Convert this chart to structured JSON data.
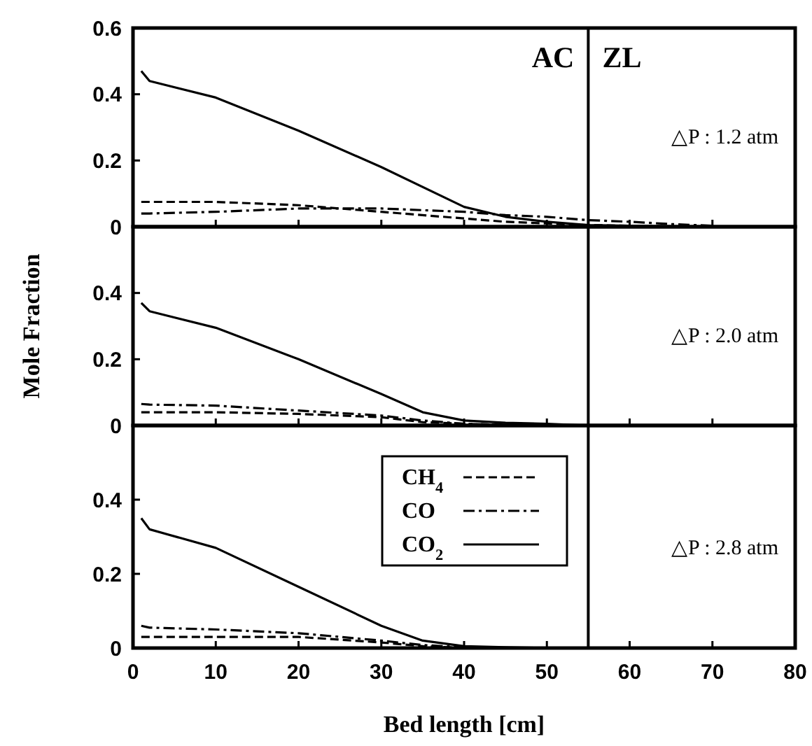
{
  "chart_data": [
    {
      "type": "line",
      "xlim": [
        0,
        80
      ],
      "ylim": [
        0,
        0.6
      ],
      "yticks": [
        0,
        0.2,
        0.4,
        0.6
      ],
      "xticks": [
        0,
        10,
        20,
        30,
        40,
        50,
        60,
        70,
        80
      ],
      "tick_labels": "y",
      "legend": false,
      "grid": false,
      "ref_lines": [
        {
          "axis": "x",
          "value": 55
        }
      ],
      "annotations": [
        "AC",
        "ZL",
        "△P : 1.2 atm"
      ],
      "x": [
        1,
        2,
        10,
        20,
        30,
        40,
        45,
        50,
        55,
        60,
        65,
        70
      ],
      "series": [
        {
          "color": "#000000",
          "line_style": "dashed",
          "values": [
            0.075,
            0.075,
            0.075,
            0.065,
            0.045,
            0.025,
            0.015,
            0.01,
            0.005,
            0.003,
            0.001,
            0
          ]
        },
        {
          "color": "#000000",
          "line_style": "dashdot",
          "values": [
            0.04,
            0.04,
            0.045,
            0.055,
            0.055,
            0.045,
            0.035,
            0.03,
            0.02,
            0.015,
            0.008,
            0.003
          ]
        },
        {
          "color": "#000000",
          "line_style": "solid",
          "values": [
            0.47,
            0.44,
            0.39,
            0.29,
            0.18,
            0.06,
            0.03,
            0.015,
            0.005,
            0.003,
            0.001,
            0
          ]
        }
      ]
    },
    {
      "type": "line",
      "xlim": [
        0,
        80
      ],
      "ylim": [
        0,
        0.6
      ],
      "yticks": [
        0,
        0.2,
        0.4
      ],
      "xticks": [
        0,
        10,
        20,
        30,
        40,
        50,
        60,
        70,
        80
      ],
      "tick_labels": "y",
      "legend": false,
      "grid": false,
      "ylabel": "Mole Fraction",
      "ref_lines": [
        {
          "axis": "x",
          "value": 55
        }
      ],
      "annotations": [
        "△P : 2.0 atm"
      ],
      "x": [
        1,
        2,
        10,
        20,
        30,
        35,
        40,
        45,
        50,
        55
      ],
      "series": [
        {
          "color": "#000000",
          "line_style": "dashed",
          "values": [
            0.04,
            0.04,
            0.04,
            0.035,
            0.025,
            0.01,
            0.005,
            0.002,
            0,
            0
          ]
        },
        {
          "color": "#000000",
          "line_style": "dashdot",
          "values": [
            0.065,
            0.063,
            0.06,
            0.045,
            0.03,
            0.015,
            0.005,
            0.002,
            0,
            0
          ]
        },
        {
          "color": "#000000",
          "line_style": "solid",
          "values": [
            0.37,
            0.345,
            0.295,
            0.2,
            0.095,
            0.04,
            0.015,
            0.008,
            0.005,
            0
          ]
        }
      ]
    },
    {
      "type": "line",
      "xlim": [
        0,
        80
      ],
      "ylim": [
        0,
        0.6
      ],
      "yticks": [
        0,
        0.2,
        0.4
      ],
      "xticks": [
        0,
        10,
        20,
        30,
        40,
        50,
        60,
        70,
        80
      ],
      "legend": "top",
      "grid": false,
      "xlabel": "Bed length [cm]",
      "ref_lines": [
        {
          "axis": "x",
          "value": 55
        }
      ],
      "annotations": [
        "△P : 2.8 atm"
      ],
      "x": [
        1,
        2,
        10,
        20,
        30,
        35,
        40,
        45,
        50,
        55
      ],
      "series": [
        {
          "name": "CH$_{4}$",
          "color": "#000000",
          "line_style": "dashed",
          "values": [
            0.03,
            0.03,
            0.03,
            0.03,
            0.015,
            0.005,
            0,
            0,
            0,
            0
          ]
        },
        {
          "name": "CO",
          "color": "#000000",
          "line_style": "dashdot",
          "values": [
            0.06,
            0.055,
            0.05,
            0.04,
            0.02,
            0.008,
            0.002,
            0,
            0,
            0
          ]
        },
        {
          "name": "CO$_{2}$",
          "color": "#000000",
          "line_style": "solid",
          "values": [
            0.35,
            0.32,
            0.27,
            0.165,
            0.06,
            0.02,
            0.005,
            0.002,
            0,
            0
          ]
        }
      ]
    }
  ]
}
